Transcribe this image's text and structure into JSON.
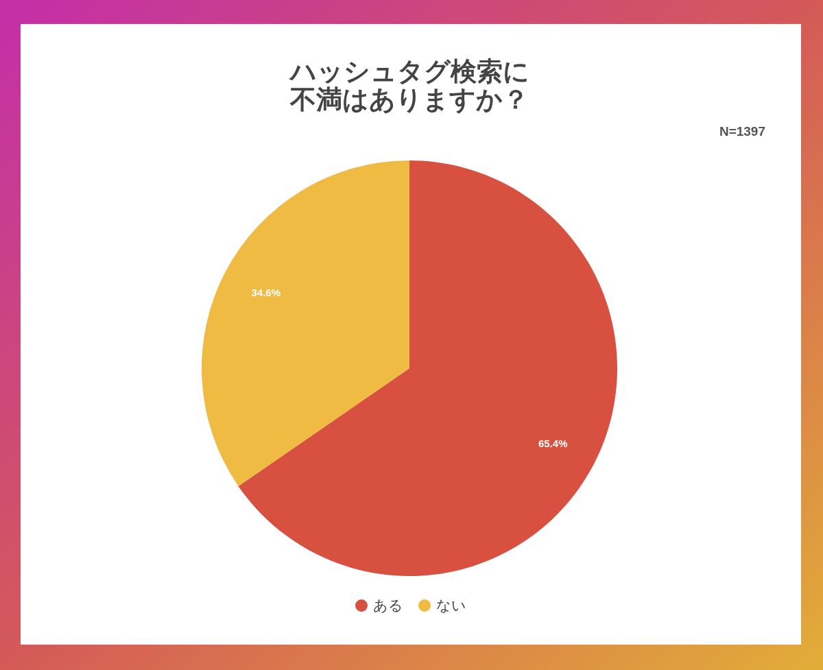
{
  "chart_data": {
    "type": "pie",
    "title": "ハッシュタグ検索に不満はありますか？",
    "annotations": [
      "N=1397"
    ],
    "categories": [
      "ある",
      "ない"
    ],
    "values": [
      65.4,
      34.6
    ],
    "colors": [
      "#d85040",
      "#f0bb42"
    ],
    "value_labels": [
      "65.4%",
      "34.6%"
    ],
    "legend": "bottom"
  }
}
